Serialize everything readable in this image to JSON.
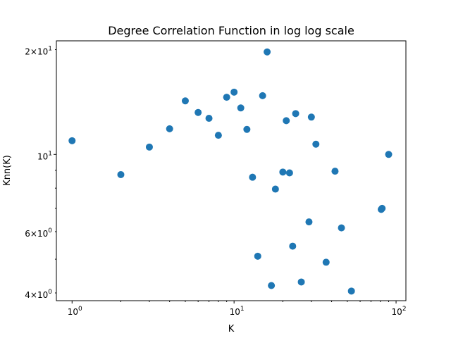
{
  "chart_data": {
    "type": "scatter",
    "title": "Degree Correlation Function in log log scale",
    "xlabel": "K",
    "ylabel": "Knn(K)",
    "xscale": "log",
    "yscale": "log",
    "xlim": [
      0.8,
      115
    ],
    "ylim": [
      3.8,
      21.2
    ],
    "grid": false,
    "marker_color": "#1f77b4",
    "x_major_ticks": [
      {
        "value": 1,
        "base": "10",
        "exp": "0"
      },
      {
        "value": 10,
        "base": "10",
        "exp": "1"
      },
      {
        "value": 100,
        "base": "10",
        "exp": "2"
      }
    ],
    "x_minor_ticks": [
      2,
      3,
      4,
      5,
      6,
      7,
      8,
      9,
      20,
      30,
      40,
      50,
      60,
      70,
      80,
      90
    ],
    "y_labeled_ticks": [
      {
        "value": 20,
        "mant": "2",
        "base": "10",
        "exp": "1"
      },
      {
        "value": 10,
        "mant": "",
        "base": "10",
        "exp": "1"
      },
      {
        "value": 6,
        "mant": "6",
        "base": "10",
        "exp": "0"
      },
      {
        "value": 4,
        "mant": "4",
        "base": "10",
        "exp": "0"
      }
    ],
    "y_minor_ticks": [
      5,
      7,
      8,
      9
    ],
    "points": [
      {
        "x": 1,
        "y": 10.95
      },
      {
        "x": 2,
        "y": 8.75
      },
      {
        "x": 3,
        "y": 10.5
      },
      {
        "x": 4,
        "y": 11.85
      },
      {
        "x": 5,
        "y": 14.25
      },
      {
        "x": 6,
        "y": 13.2
      },
      {
        "x": 7,
        "y": 12.7
      },
      {
        "x": 8,
        "y": 11.35
      },
      {
        "x": 9,
        "y": 14.6
      },
      {
        "x": 10,
        "y": 15.1
      },
      {
        "x": 11,
        "y": 13.6
      },
      {
        "x": 12,
        "y": 11.8
      },
      {
        "x": 13,
        "y": 8.6
      },
      {
        "x": 14,
        "y": 5.1
      },
      {
        "x": 15,
        "y": 14.75
      },
      {
        "x": 16,
        "y": 19.7
      },
      {
        "x": 17,
        "y": 4.2
      },
      {
        "x": 18,
        "y": 7.95
      },
      {
        "x": 20,
        "y": 8.9
      },
      {
        "x": 21,
        "y": 12.5
      },
      {
        "x": 22,
        "y": 8.85
      },
      {
        "x": 23,
        "y": 5.45
      },
      {
        "x": 24,
        "y": 13.1
      },
      {
        "x": 26,
        "y": 4.3
      },
      {
        "x": 29,
        "y": 6.4
      },
      {
        "x": 30,
        "y": 12.8
      },
      {
        "x": 32,
        "y": 10.7
      },
      {
        "x": 37,
        "y": 4.9
      },
      {
        "x": 42,
        "y": 8.95
      },
      {
        "x": 46,
        "y": 6.15
      },
      {
        "x": 53,
        "y": 4.05
      },
      {
        "x": 81,
        "y": 6.95
      },
      {
        "x": 82,
        "y": 7.0
      },
      {
        "x": 90,
        "y": 10.0
      }
    ]
  }
}
